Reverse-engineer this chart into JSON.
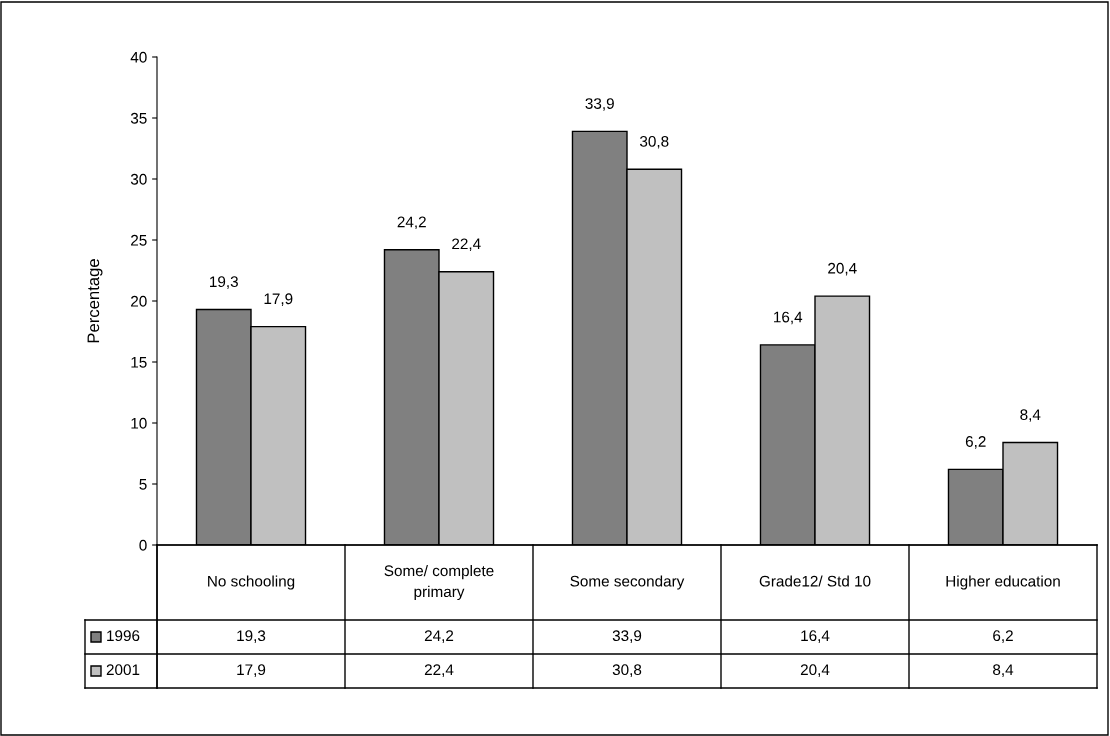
{
  "chart_data": {
    "type": "bar",
    "ylabel": "Percentage",
    "categories": [
      "No schooling",
      "Some/ complete\nprimary",
      "Some secondary",
      "Grade12/ Std 10",
      "Higher education"
    ],
    "series": [
      {
        "name": "1996",
        "color": "#808080",
        "values": [
          19.3,
          24.2,
          33.9,
          16.4,
          6.2
        ],
        "value_labels": [
          "19,3",
          "24,2",
          "33,9",
          "16,4",
          "6,2"
        ]
      },
      {
        "name": "2001",
        "color": "#c0c0c0",
        "values": [
          17.9,
          22.4,
          30.8,
          20.4,
          8.4
        ],
        "value_labels": [
          "17,9",
          "22,4",
          "30,8",
          "20,4",
          "8,4"
        ]
      }
    ],
    "ylim": [
      0,
      40
    ],
    "yticks": [
      0,
      5,
      10,
      15,
      20,
      25,
      30,
      35,
      40
    ],
    "grid": false,
    "legend": "bottom"
  }
}
